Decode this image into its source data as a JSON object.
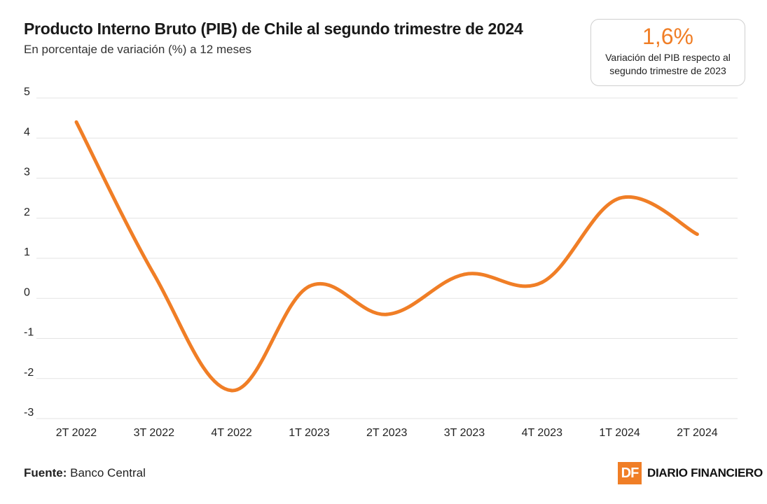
{
  "header": {
    "title": "Producto Interno Bruto (PIB) de Chile al segundo trimestre de 2024",
    "subtitle": "En porcentaje de variación (%) a 12 meses"
  },
  "kpi": {
    "value": "1,6%",
    "label": "Variación del PIB respecto al segundo trimestre de 2023"
  },
  "footer": {
    "source_label": "Fuente:",
    "source_value": "Banco Central",
    "brand_mark": "DF",
    "brand_name": "DIARIO FINANCIERO"
  },
  "colors": {
    "accent": "#f07e26",
    "grid": "#e3e3e3"
  },
  "chart_data": {
    "type": "line",
    "title": "Producto Interno Bruto (PIB) de Chile al segundo trimestre de 2024",
    "subtitle": "En porcentaje de variación (%) a 12 meses",
    "xlabel": "",
    "ylabel": "",
    "categories": [
      "2T 2022",
      "3T 2022",
      "4T 2022",
      "1T 2023",
      "2T 2023",
      "3T 2023",
      "4T 2023",
      "1T 2024",
      "2T 2024"
    ],
    "series": [
      {
        "values": [
          4.4,
          0.6,
          -2.3,
          0.3,
          -0.4,
          0.6,
          0.4,
          2.5,
          1.6
        ]
      }
    ],
    "ylim": [
      -3,
      5
    ],
    "yticks": [
      5,
      4,
      3,
      2,
      1,
      0,
      -1,
      -2,
      -3
    ],
    "grid": true,
    "legend": "none",
    "line_style": "smooth"
  }
}
